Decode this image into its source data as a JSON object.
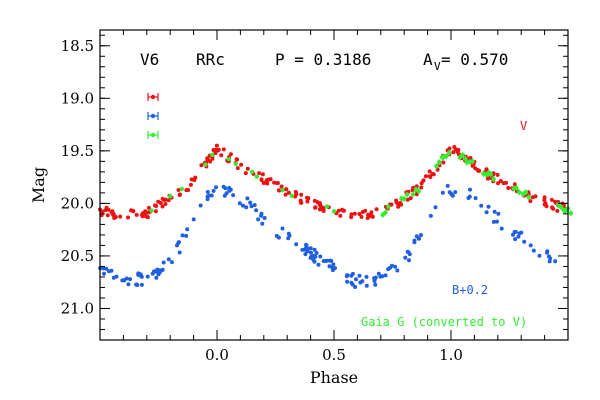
{
  "chart_data": {
    "type": "scatter",
    "title": "",
    "xlabel": "Phase",
    "ylabel": "Mag",
    "xlim": [
      -0.5,
      1.5
    ],
    "ylim": [
      21.3,
      18.35
    ],
    "y_inverted": true,
    "x_ticks": [
      "0.0",
      "0.5",
      "1.0"
    ],
    "x_tick_values": [
      0.0,
      0.5,
      1.0
    ],
    "y_ticks": [
      "18.5",
      "19.0",
      "19.5",
      "20.0",
      "20.5",
      "21.0"
    ],
    "y_tick_values": [
      18.5,
      19.0,
      19.5,
      20.0,
      20.5,
      21.0
    ],
    "grid": false,
    "header": {
      "star": "V6",
      "type": "RRc",
      "period_label": "P = 0.3186",
      "amp_label": "A",
      "amp_sub": "V",
      "amp_value": " = 0.570"
    },
    "series": [
      {
        "name": "V",
        "color": "#ee1111",
        "label_text": "V",
        "mag_offset": 0,
        "key_points": [
          [
            0.0,
            19.48
          ],
          [
            0.14,
            19.7
          ],
          [
            0.35,
            19.95
          ],
          [
            0.55,
            20.1
          ],
          [
            0.7,
            20.1
          ],
          [
            0.87,
            19.85
          ],
          [
            1.0,
            19.48
          ]
        ]
      },
      {
        "name": "B+0.2",
        "color": "#1f5fe0",
        "label_text": "B+0.2",
        "mag_offset": 0.2,
        "key_points": [
          [
            -0.03,
            19.88
          ],
          [
            0.06,
            19.87
          ],
          [
            0.25,
            20.25
          ],
          [
            0.45,
            20.55
          ],
          [
            0.6,
            20.75
          ],
          [
            0.72,
            20.7
          ],
          [
            0.82,
            20.5
          ],
          [
            0.9,
            20.15
          ],
          [
            0.97,
            19.88
          ]
        ]
      },
      {
        "name": "Gaia G (converted to V)",
        "color": "#33ee33",
        "label_text": "Gaia G (converted to V)",
        "mag_offset": 0,
        "sample_phases": [
          0.72,
          0.8,
          0.85,
          0.95,
          0.98,
          1.05,
          1.08,
          1.15,
          1.17,
          1.28,
          1.32,
          1.47,
          1.5
        ]
      }
    ],
    "error_bar_legend": [
      {
        "series": "V",
        "color": "#ee1111"
      },
      {
        "series": "B+0.2",
        "color": "#1f5fe0"
      },
      {
        "series": "Gaia G",
        "color": "#33ee33"
      }
    ]
  }
}
